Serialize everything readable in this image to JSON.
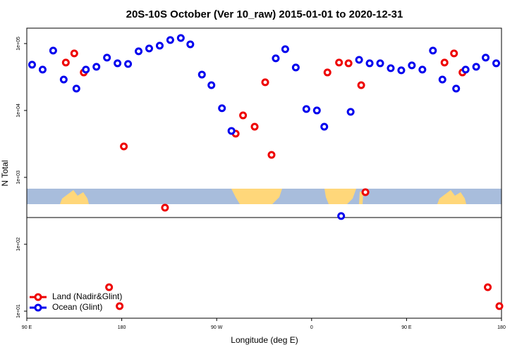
{
  "chart_data": {
    "type": "scatter",
    "title": "20S-10S October (Ver 10_raw)   2015-01-01 to 2020-12-31",
    "x_label": "Longitude (deg E)",
    "y_label": "N Total",
    "xlim": [
      90,
      540
    ],
    "xticks": [
      {
        "value": 90,
        "label": "90 E"
      },
      {
        "value": 180,
        "label": "180"
      },
      {
        "value": 270,
        "label": "90 W"
      },
      {
        "value": 360,
        "label": "0"
      },
      {
        "value": 450,
        "label": "90 E"
      },
      {
        "value": 540,
        "label": "180"
      }
    ],
    "ylim": [
      7.85,
      170000
    ],
    "yticks": [
      {
        "value": 10,
        "label": "1e+01"
      },
      {
        "value": 100,
        "label": "1e+02"
      },
      {
        "value": 1000,
        "label": "1e+03"
      },
      {
        "value": 10000,
        "label": "1e+04"
      },
      {
        "value": 100000,
        "label": "1e+05"
      }
    ],
    "log_y": true,
    "legend": "bottom-left",
    "series": [
      {
        "name": "Land (Nadir&Glint)",
        "color": "#ee0000",
        "x": [
          127,
          135,
          144,
          182,
          168,
          178,
          221,
          288,
          295,
          306,
          316,
          322,
          375,
          386,
          395,
          407,
          411,
          486,
          495,
          503,
          527,
          538
        ],
        "values": [
          52000,
          71200,
          37000,
          2900,
          22.8,
          11.9,
          352,
          4500,
          8440,
          5720,
          26400,
          2170,
          37000,
          52000,
          50700,
          23900,
          600,
          52000,
          71200,
          37000,
          22.8,
          11.9
        ]
      },
      {
        "name": "Ocean (Glint)",
        "color": "#0000ee",
        "x": [
          95,
          105,
          115,
          125,
          137,
          146,
          156,
          166,
          176,
          186,
          196,
          206,
          216,
          226,
          236,
          245,
          256,
          265,
          275,
          284,
          326,
          335,
          345,
          355,
          365,
          372,
          388,
          397,
          405,
          415,
          425,
          435,
          445,
          455,
          465,
          475,
          484,
          497,
          506,
          516,
          525,
          535
        ],
        "values": [
          48300,
          40800,
          78500,
          29000,
          21200,
          40800,
          45000,
          61600,
          50700,
          49500,
          76600,
          84400,
          93000,
          113000,
          121000,
          97500,
          34400,
          23900,
          10800,
          4950,
          60100,
          82400,
          43900,
          10500,
          10000,
          5720,
          264,
          9530,
          57200,
          50700,
          50700,
          42800,
          39800,
          47200,
          40800,
          78500,
          29000,
          21200,
          40800,
          45000,
          61600,
          50700
        ]
      }
    ]
  }
}
